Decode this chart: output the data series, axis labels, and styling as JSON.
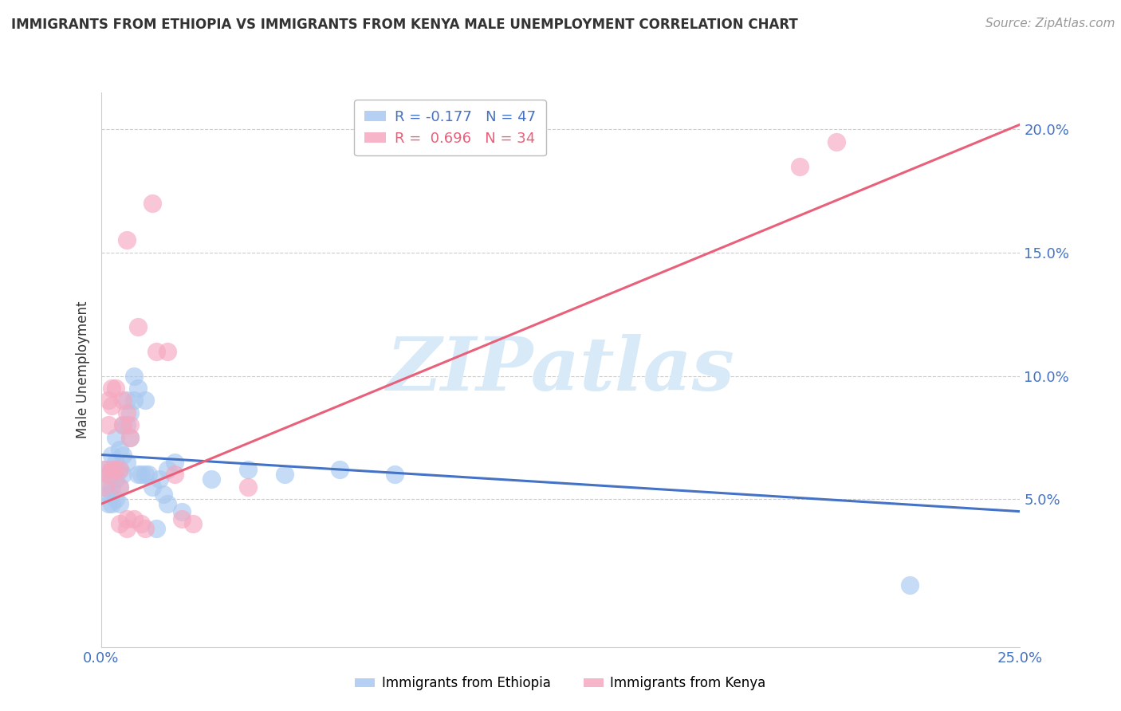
{
  "title": "IMMIGRANTS FROM ETHIOPIA VS IMMIGRANTS FROM KENYA MALE UNEMPLOYMENT CORRELATION CHART",
  "source": "Source: ZipAtlas.com",
  "ylabel": "Male Unemployment",
  "x_min": 0.0,
  "x_max": 0.25,
  "y_min": -0.01,
  "y_max": 0.215,
  "y_ticks": [
    0.05,
    0.1,
    0.15,
    0.2
  ],
  "y_tick_labels": [
    "5.0%",
    "10.0%",
    "15.0%",
    "20.0%"
  ],
  "x_ticks": [
    0.0,
    0.05,
    0.1,
    0.15,
    0.2,
    0.25
  ],
  "x_tick_labels": [
    "0.0%",
    "",
    "",
    "",
    "",
    "25.0%"
  ],
  "legend_items": [
    {
      "label": "R = -0.177   N = 47",
      "color": "#a8c8f0"
    },
    {
      "label": "R =  0.696   N = 34",
      "color": "#f5a8c0"
    }
  ],
  "legend_labels_bottom": [
    "Immigrants from Ethiopia",
    "Immigrants from Kenya"
  ],
  "ethiopia_color": "#a8c8f0",
  "kenya_color": "#f5a8c0",
  "ethiopia_line_color": "#4472c4",
  "kenya_line_color": "#e8607a",
  "watermark": "ZIPatlas",
  "watermark_color": "#d8eaf8",
  "ethiopia_scatter": [
    [
      0.001,
      0.062
    ],
    [
      0.001,
      0.055
    ],
    [
      0.002,
      0.06
    ],
    [
      0.002,
      0.052
    ],
    [
      0.002,
      0.048
    ],
    [
      0.003,
      0.068
    ],
    [
      0.003,
      0.062
    ],
    [
      0.003,
      0.055
    ],
    [
      0.003,
      0.048
    ],
    [
      0.004,
      0.075
    ],
    [
      0.004,
      0.065
    ],
    [
      0.004,
      0.058
    ],
    [
      0.004,
      0.05
    ],
    [
      0.005,
      0.07
    ],
    [
      0.005,
      0.062
    ],
    [
      0.005,
      0.055
    ],
    [
      0.005,
      0.048
    ],
    [
      0.006,
      0.08
    ],
    [
      0.006,
      0.068
    ],
    [
      0.006,
      0.06
    ],
    [
      0.007,
      0.09
    ],
    [
      0.007,
      0.08
    ],
    [
      0.007,
      0.065
    ],
    [
      0.008,
      0.085
    ],
    [
      0.008,
      0.075
    ],
    [
      0.009,
      0.1
    ],
    [
      0.009,
      0.09
    ],
    [
      0.01,
      0.095
    ],
    [
      0.01,
      0.06
    ],
    [
      0.011,
      0.06
    ],
    [
      0.012,
      0.09
    ],
    [
      0.012,
      0.06
    ],
    [
      0.013,
      0.06
    ],
    [
      0.014,
      0.055
    ],
    [
      0.015,
      0.038
    ],
    [
      0.016,
      0.058
    ],
    [
      0.017,
      0.052
    ],
    [
      0.018,
      0.062
    ],
    [
      0.018,
      0.048
    ],
    [
      0.02,
      0.065
    ],
    [
      0.022,
      0.045
    ],
    [
      0.03,
      0.058
    ],
    [
      0.04,
      0.062
    ],
    [
      0.05,
      0.06
    ],
    [
      0.065,
      0.062
    ],
    [
      0.08,
      0.06
    ],
    [
      0.22,
      0.015
    ]
  ],
  "kenya_scatter": [
    [
      0.001,
      0.062
    ],
    [
      0.001,
      0.055
    ],
    [
      0.002,
      0.09
    ],
    [
      0.002,
      0.08
    ],
    [
      0.002,
      0.06
    ],
    [
      0.003,
      0.095
    ],
    [
      0.003,
      0.088
    ],
    [
      0.003,
      0.062
    ],
    [
      0.004,
      0.095
    ],
    [
      0.004,
      0.062
    ],
    [
      0.005,
      0.062
    ],
    [
      0.005,
      0.055
    ],
    [
      0.005,
      0.04
    ],
    [
      0.006,
      0.09
    ],
    [
      0.006,
      0.08
    ],
    [
      0.007,
      0.155
    ],
    [
      0.007,
      0.085
    ],
    [
      0.007,
      0.042
    ],
    [
      0.007,
      0.038
    ],
    [
      0.008,
      0.08
    ],
    [
      0.008,
      0.075
    ],
    [
      0.009,
      0.042
    ],
    [
      0.01,
      0.12
    ],
    [
      0.011,
      0.04
    ],
    [
      0.012,
      0.038
    ],
    [
      0.014,
      0.17
    ],
    [
      0.015,
      0.11
    ],
    [
      0.018,
      0.11
    ],
    [
      0.02,
      0.06
    ],
    [
      0.022,
      0.042
    ],
    [
      0.025,
      0.04
    ],
    [
      0.04,
      0.055
    ],
    [
      0.19,
      0.185
    ],
    [
      0.2,
      0.195
    ]
  ],
  "ethiopia_line_x": [
    0.0,
    0.25
  ],
  "ethiopia_line_y": [
    0.068,
    0.045
  ],
  "kenya_line_x": [
    0.0,
    0.25
  ],
  "kenya_line_y": [
    0.048,
    0.202
  ]
}
